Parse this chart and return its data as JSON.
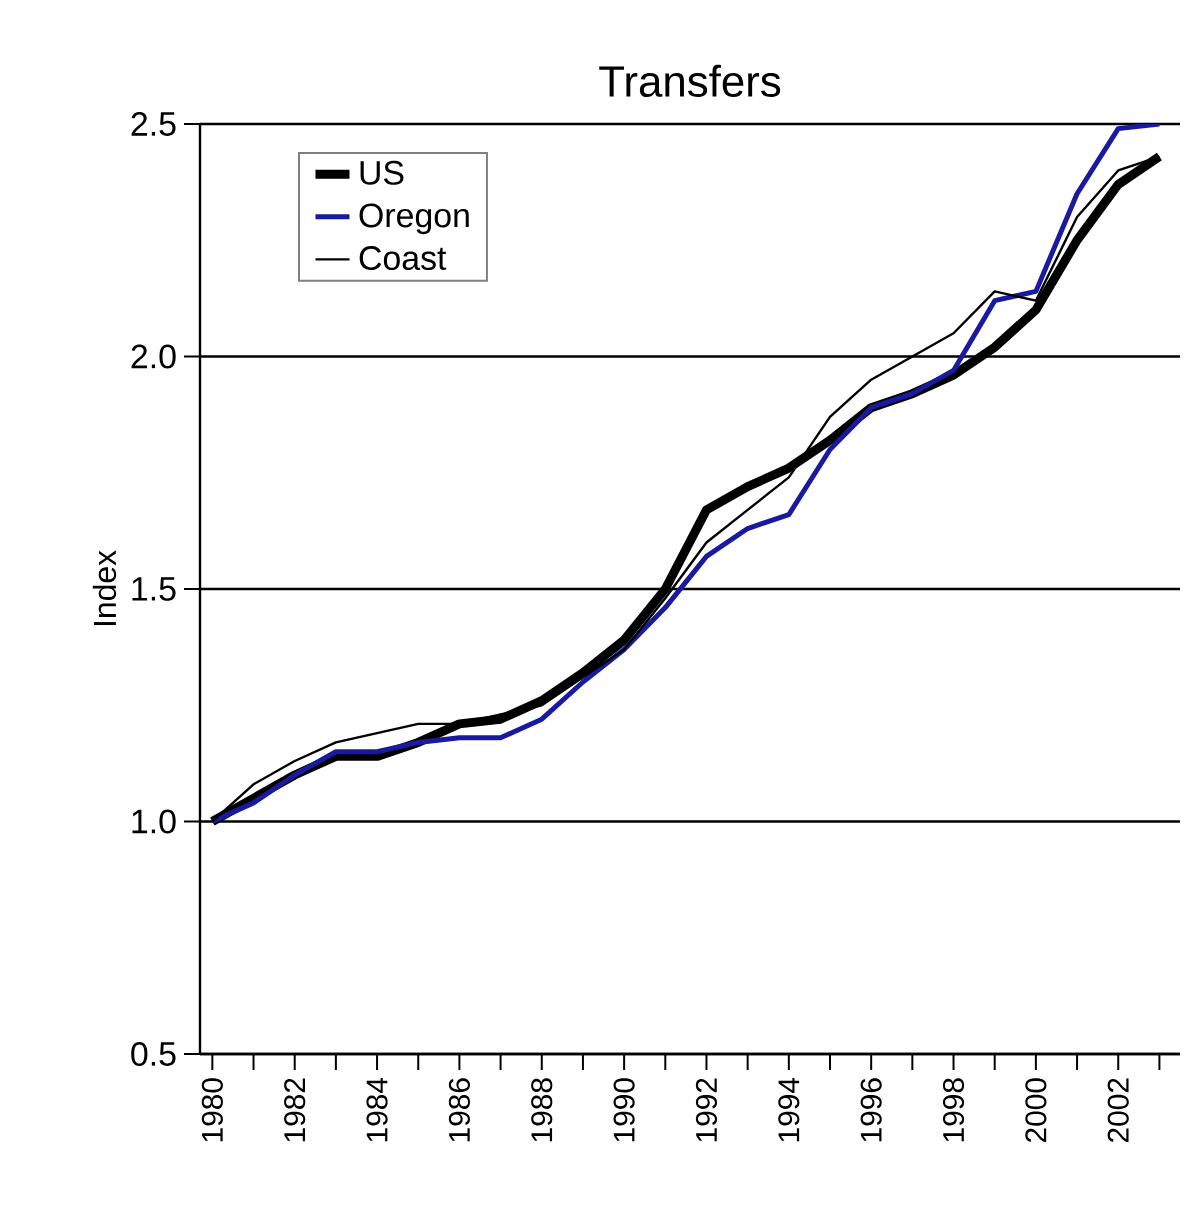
{
  "chart_data": {
    "type": "line",
    "title": "Transfers",
    "ylabel": "Index",
    "x": [
      1980,
      1981,
      1982,
      1983,
      1984,
      1985,
      1986,
      1987,
      1988,
      1989,
      1990,
      1991,
      1992,
      1993,
      1994,
      1995,
      1996,
      1997,
      1998,
      1999,
      2000,
      2001,
      2002,
      2003
    ],
    "series": [
      {
        "name": "US",
        "color": "#000000",
        "values": [
          1.0,
          1.05,
          1.1,
          1.14,
          1.14,
          1.17,
          1.21,
          1.22,
          1.26,
          1.32,
          1.39,
          1.5,
          1.67,
          1.72,
          1.76,
          1.82,
          1.89,
          1.92,
          1.96,
          2.02,
          2.1,
          2.25,
          2.37,
          2.43
        ]
      },
      {
        "name": "Oregon",
        "color": "#1a1aa0",
        "values": [
          1.0,
          1.04,
          1.1,
          1.15,
          1.15,
          1.17,
          1.18,
          1.18,
          1.22,
          1.3,
          1.37,
          1.46,
          1.57,
          1.63,
          1.66,
          1.8,
          1.89,
          1.92,
          1.97,
          2.12,
          2.14,
          2.35,
          2.49,
          2.5
        ]
      },
      {
        "name": "Coast",
        "color": "#000000",
        "values": [
          1.0,
          1.08,
          1.13,
          1.17,
          1.19,
          1.21,
          1.21,
          1.23,
          1.25,
          1.31,
          1.37,
          1.48,
          1.6,
          1.67,
          1.74,
          1.87,
          1.95,
          2.0,
          2.05,
          2.14,
          2.12,
          2.3,
          2.4,
          2.43
        ]
      }
    ],
    "xlim": [
      1979.7,
      2003.5
    ],
    "xticks": [
      1980,
      {
        "value": 1981,
        "label": null
      },
      1982,
      {
        "value": 1983,
        "label": null
      },
      1984,
      {
        "value": 1985,
        "label": null
      },
      1986,
      {
        "value": 1987,
        "label": null
      },
      1988,
      {
        "value": 1989,
        "label": null
      },
      1990,
      {
        "value": 1991,
        "label": null
      },
      1992,
      {
        "value": 1993,
        "label": null
      },
      1994,
      {
        "value": 1995,
        "label": null
      },
      1996,
      {
        "value": 1997,
        "label": null
      },
      1998,
      {
        "value": 1999,
        "label": null
      },
      2000,
      {
        "value": 2001,
        "label": null
      },
      2002,
      {
        "value": 2003,
        "label": null
      }
    ],
    "ylim": [
      0.5,
      2.5
    ],
    "yticks": [
      0.5,
      {
        "value": 1,
        "label": "1.0"
      },
      1.5,
      {
        "value": 2,
        "label": "2.0"
      },
      2.5
    ],
    "grid": "y",
    "legend": "top left",
    "marker": "none",
    "line_style": "solid"
  }
}
